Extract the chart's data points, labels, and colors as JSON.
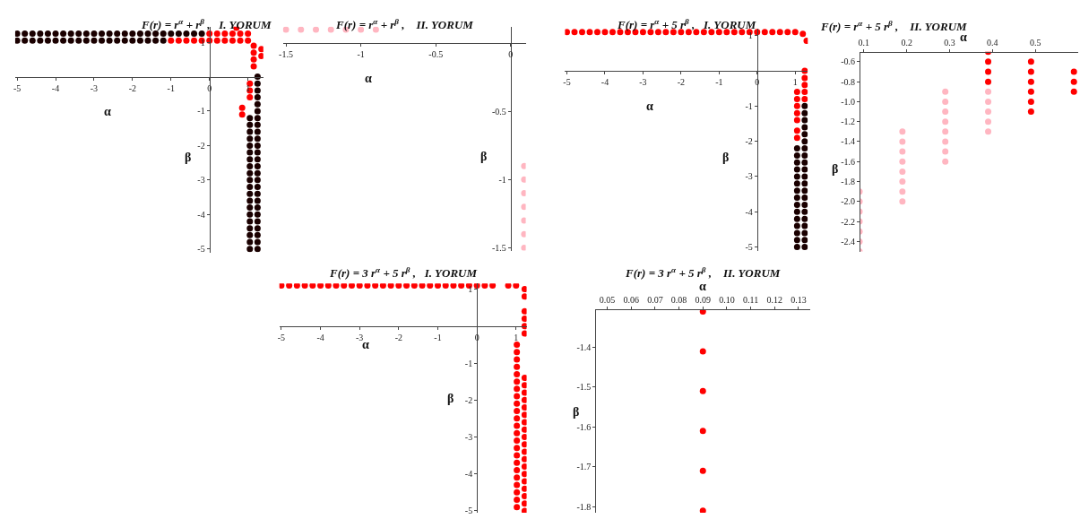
{
  "chart_data": [
    {
      "type": "scatter",
      "title": "F(r) = r$^{α}$ + r$^{β}$ ,   I. YORUM",
      "xlabel": "α",
      "ylabel": "β",
      "xlim": [
        -5.05,
        1.4
      ],
      "ylim": [
        -5.1,
        1.45
      ],
      "xticks": [
        -5,
        -4,
        -3,
        -2,
        -1,
        0,
        1
      ],
      "yticks": [
        -5,
        -4,
        -3,
        -2,
        -1,
        1
      ],
      "marker": "circle",
      "series": [
        {
          "color": "#1a0000",
          "x": [
            -5,
            -4.8,
            -4.6,
            -4.4,
            -4.2,
            -4,
            -3.8,
            -3.6,
            -3.4,
            -3.2,
            -3,
            -2.8,
            -2.6,
            -2.4,
            -2.2,
            -2,
            -1.8,
            -1.6,
            -1.4,
            -1.2,
            -1,
            -0.8,
            -0.6,
            -0.4,
            -0.2
          ],
          "values": [
            1.25,
            1.25,
            1.25,
            1.25,
            1.25,
            1.25,
            1.25,
            1.25,
            1.25,
            1.25,
            1.25,
            1.25,
            1.25,
            1.25,
            1.25,
            1.25,
            1.25,
            1.25,
            1.25,
            1.25,
            1.25,
            1.25,
            1.25,
            1.25,
            1.25
          ]
        },
        {
          "color": "#1a0000",
          "x": [
            -5,
            -4.8,
            -4.6,
            -4.4,
            -4.2,
            -4,
            -3.8,
            -3.6,
            -3.4,
            -3.2,
            -3,
            -2.8,
            -2.6,
            -2.4,
            -2.2,
            -2,
            -1.8,
            -1.6,
            -1.4,
            -1.2
          ],
          "values": [
            1.05,
            1.05,
            1.05,
            1.05,
            1.05,
            1.05,
            1.05,
            1.05,
            1.05,
            1.05,
            1.05,
            1.05,
            1.05,
            1.05,
            1.05,
            1.05,
            1.05,
            1.05,
            1.05,
            1.05
          ]
        },
        {
          "color": "#1a0000",
          "x": [
            1.05,
            1.05,
            1.05,
            1.05,
            1.05,
            1.05,
            1.05,
            1.05,
            1.05,
            1.05,
            1.05,
            1.05,
            1.05,
            1.05,
            1.05,
            1.05,
            1.05,
            1.05,
            1.05,
            1.05
          ],
          "values": [
            -5,
            -4.8,
            -4.6,
            -4.4,
            -4.2,
            -4,
            -3.8,
            -3.6,
            -3.4,
            -3.2,
            -3,
            -2.8,
            -2.6,
            -2.4,
            -2.2,
            -2,
            -1.8,
            -1.6,
            -1.4,
            -1.2
          ]
        },
        {
          "color": "#1a0000",
          "x": [
            1.25,
            1.25,
            1.25,
            1.25,
            1.25,
            1.25,
            1.25,
            1.25,
            1.25,
            1.25,
            1.25,
            1.25,
            1.25,
            1.25,
            1.25,
            1.25,
            1.25,
            1.25,
            1.25,
            1.25,
            1.25,
            1.25,
            1.25,
            1.25,
            1.25,
            1.25
          ],
          "values": [
            -5,
            -4.8,
            -4.6,
            -4.4,
            -4.2,
            -4,
            -3.8,
            -3.6,
            -3.4,
            -3.2,
            -3,
            -2.8,
            -2.6,
            -2.4,
            -2.2,
            -2,
            -1.8,
            -1.6,
            -1.4,
            -1.2,
            -1,
            -0.8,
            -0.6,
            -0.4,
            -0.2,
            0
          ]
        },
        {
          "color": "#ff0000",
          "x": [
            0,
            0.2,
            0.4,
            0.6,
            0.8,
            1.0,
            -1,
            -0.8,
            -0.6,
            -0.4,
            -0.2,
            0,
            0.2,
            0.4,
            0.6,
            0.8,
            1.0,
            0.7
          ],
          "values": [
            1.25,
            1.25,
            1.25,
            1.25,
            1.25,
            1.25,
            1.05,
            1.05,
            1.05,
            1.05,
            1.05,
            1.05,
            1.05,
            1.05,
            1.05,
            1.05,
            1.05,
            1.42
          ]
        },
        {
          "color": "#ff0000",
          "x": [
            1.15,
            1.15,
            1.15,
            1.15,
            1.35,
            1.35,
            1.05,
            1.05,
            1.05,
            0.85,
            0.85
          ],
          "values": [
            0.9,
            0.7,
            0.5,
            0.3,
            0.8,
            0.6,
            -0.6,
            -0.4,
            -0.2,
            -0.9,
            -1.1
          ]
        }
      ]
    },
    {
      "type": "scatter",
      "title": "F(r) = r$^{α}$ + r$^{β}$ ,    II. YORUM",
      "xlabel": "α",
      "ylabel": "β",
      "xlim": [
        -1.52,
        0.1
      ],
      "ylim": [
        -1.52,
        0.12
      ],
      "xticks": [
        -1.5,
        -1,
        -0.5,
        0
      ],
      "yticks": [
        -1.5,
        -1,
        -0.5
      ],
      "marker": "circle",
      "series": [
        {
          "color": "#ffb6c1",
          "x": [
            -1.5,
            -1.4,
            -1.3,
            -1.2,
            -1.1,
            -1.0,
            -0.9,
            0.09,
            0.09,
            0.09,
            0.09,
            0.09,
            0.09,
            0.09
          ],
          "values": [
            0.1,
            0.1,
            0.1,
            0.1,
            0.1,
            0.1,
            0.1,
            -0.9,
            -1.0,
            -1.1,
            -1.2,
            -1.3,
            -1.4,
            -1.5
          ]
        }
      ]
    },
    {
      "type": "scatter",
      "title": "F(r) = r$^{α}$ + 5 r$^{β}$ ,   I. YORUM",
      "xlabel": "α",
      "ylabel": "β",
      "xlim": [
        -5.05,
        1.33
      ],
      "ylim": [
        -5.1,
        1.2
      ],
      "xticks": [
        -5,
        -4,
        -3,
        -2,
        -1,
        0,
        1
      ],
      "yticks": [
        -5,
        -4,
        -3,
        -2,
        -1,
        1
      ],
      "marker": "circle",
      "series": [
        {
          "color": "#ff0000",
          "x": [
            -5,
            -4.8,
            -4.6,
            -4.4,
            -4.2,
            -4,
            -3.8,
            -3.6,
            -3.4,
            -3.2,
            -3,
            -2.8,
            -2.6,
            -2.4,
            -2.2,
            -2,
            -1.8,
            -1.6,
            -1.4,
            -1.2,
            -1,
            -0.8,
            -0.6,
            -0.4,
            -0.2,
            0,
            0.2,
            0.4,
            0.6,
            0.8,
            1.0,
            1.2,
            1.3
          ],
          "values": [
            1.1,
            1.1,
            1.1,
            1.1,
            1.1,
            1.1,
            1.1,
            1.1,
            1.1,
            1.1,
            1.1,
            1.1,
            1.1,
            1.1,
            1.1,
            1.1,
            1.1,
            1.1,
            1.1,
            1.1,
            1.1,
            1.1,
            1.1,
            1.1,
            1.1,
            1.1,
            1.1,
            1.1,
            1.1,
            1.1,
            1.1,
            1.05,
            0.85
          ]
        },
        {
          "color": "#ff0000",
          "x": [
            1.25,
            1.25,
            1.25,
            1.25,
            1.25,
            1.05,
            1.05,
            1.05,
            1.05,
            1.05,
            1.05,
            1.05
          ],
          "values": [
            0,
            -0.2,
            -0.4,
            -0.6,
            -0.8,
            -0.6,
            -0.8,
            -1.0,
            -1.2,
            -1.4,
            -1.7,
            -1.9
          ]
        },
        {
          "color": "#1a0000",
          "x": [
            1.05,
            1.05,
            1.05,
            1.05,
            1.05,
            1.05,
            1.05,
            1.05,
            1.05,
            1.05,
            1.05,
            1.05,
            1.05,
            1.05,
            1.05
          ],
          "values": [
            -5,
            -4.8,
            -4.6,
            -4.4,
            -4.2,
            -4,
            -3.8,
            -3.6,
            -3.4,
            -3.2,
            -3,
            -2.8,
            -2.6,
            -2.4,
            -2.2
          ]
        },
        {
          "color": "#1a0000",
          "x": [
            1.25,
            1.25,
            1.25,
            1.25,
            1.25,
            1.25,
            1.25,
            1.25,
            1.25,
            1.25,
            1.25,
            1.25,
            1.25,
            1.25,
            1.25,
            1.25,
            1.25,
            1.25,
            1.25,
            1.25,
            1.25
          ],
          "values": [
            -5,
            -4.8,
            -4.6,
            -4.4,
            -4.2,
            -4,
            -3.8,
            -3.6,
            -3.4,
            -3.2,
            -3,
            -2.8,
            -2.6,
            -2.4,
            -2.2,
            -2,
            -1.8,
            -1.6,
            -1.4,
            -1.2,
            -1.0
          ]
        }
      ]
    },
    {
      "type": "scatter",
      "title": "F(r) = r$^{α}$ + 5 r$^{β}$ ,    II. YORUM",
      "xlabel": "α",
      "ylabel": "β",
      "xlim": [
        0.09,
        0.6
      ],
      "ylim": [
        -2.5,
        -0.5
      ],
      "xticks": [
        0.1,
        0.2,
        0.3,
        0.4,
        0.5
      ],
      "yticks": [
        -0.6,
        -0.8,
        {
          "value": -1.0,
          "label": "-1.0"
        },
        -1.2,
        -1.4,
        -1.6,
        -1.8,
        {
          "value": -2.0,
          "label": "-2.0"
        },
        -2.2,
        -2.4
      ],
      "marker": "circle",
      "series": [
        {
          "color": "#ffb6c1",
          "x": [
            0.09,
            0.09,
            0.09,
            0.09,
            0.09,
            0.09,
            0.09,
            0.19,
            0.19,
            0.19,
            0.19,
            0.19,
            0.19,
            0.19,
            0.19,
            0.29,
            0.29,
            0.29,
            0.29,
            0.29,
            0.29,
            0.29,
            0.29,
            0.39,
            0.39,
            0.39,
            0.39,
            0.39
          ],
          "values": [
            -1.9,
            -2.0,
            -2.1,
            -2.2,
            -2.3,
            -2.4,
            -2.5,
            -1.3,
            -1.4,
            -1.5,
            -1.6,
            -1.7,
            -1.8,
            -1.9,
            -2.0,
            -0.9,
            -1.0,
            -1.1,
            -1.2,
            -1.3,
            -1.4,
            -1.5,
            -1.6,
            -0.9,
            -1.0,
            -1.1,
            -1.2,
            -1.3
          ]
        },
        {
          "color": "#ff0000",
          "x": [
            0.39,
            0.39,
            0.39,
            0.39,
            0.49,
            0.49,
            0.49,
            0.49,
            0.49,
            0.49,
            0.59,
            0.59,
            0.59
          ],
          "values": [
            -0.5,
            -0.6,
            -0.7,
            -0.8,
            -0.6,
            -0.7,
            -0.8,
            -0.9,
            -1.0,
            -1.1,
            -0.7,
            -0.8,
            -0.9
          ]
        }
      ]
    },
    {
      "type": "scatter",
      "title": "F(r) = 3 r$^{α}$ + 5 r$^{β}$ ,   I. YORUM",
      "xlabel": "α",
      "ylabel": "β",
      "xlim": [
        -5.05,
        1.27
      ],
      "ylim": [
        -5.05,
        1.15
      ],
      "xticks": [
        -5,
        -4,
        -3,
        -2,
        -1,
        0,
        1
      ],
      "yticks": [
        -5,
        -4,
        -3,
        -2,
        -1,
        1
      ],
      "marker": "circle",
      "series": [
        {
          "color": "#ff0000",
          "x": [
            -5,
            -4.8,
            -4.6,
            -4.4,
            -4.2,
            -4,
            -3.8,
            -3.6,
            -3.4,
            -3.2,
            -3,
            -2.8,
            -2.6,
            -2.4,
            -2.2,
            -2,
            -1.8,
            -1.6,
            -1.4,
            -1.2,
            -1,
            -0.8,
            -0.6,
            -0.4,
            -0.2,
            0,
            0.2,
            0.4,
            0.8,
            1.0
          ],
          "values": [
            1.1,
            1.1,
            1.1,
            1.1,
            1.1,
            1.1,
            1.1,
            1.1,
            1.1,
            1.1,
            1.1,
            1.1,
            1.1,
            1.1,
            1.1,
            1.1,
            1.1,
            1.1,
            1.1,
            1.1,
            1.1,
            1.1,
            1.1,
            1.1,
            1.1,
            1.1,
            1.1,
            1.1,
            1.1,
            1.1
          ]
        },
        {
          "color": "#ff0000",
          "x": [
            1.22,
            1.22,
            1.22,
            1.22,
            1.22,
            1.22
          ],
          "values": [
            1.0,
            0.8,
            0.4,
            0.2,
            0,
            -0.2
          ]
        },
        {
          "color": "#ff0000",
          "x": [
            1.02,
            1.02,
            1.02,
            1.02,
            1.02,
            1.02,
            1.02,
            1.02,
            1.02,
            1.02,
            1.02,
            1.02,
            1.02,
            1.02,
            1.02,
            1.02,
            1.02,
            1.02,
            1.02,
            1.02,
            1.02,
            1.02,
            1.02
          ],
          "values": [
            -0.5,
            -0.7,
            -0.9,
            -1.1,
            -1.3,
            -1.5,
            -1.7,
            -1.9,
            -2.1,
            -2.3,
            -2.5,
            -2.7,
            -2.9,
            -3.1,
            -3.3,
            -3.5,
            -3.7,
            -3.9,
            -4.1,
            -4.3,
            -4.5,
            -4.7,
            -4.9
          ]
        },
        {
          "color": "#ff0000",
          "x": [
            1.22,
            1.22,
            1.22,
            1.22,
            1.22,
            1.22,
            1.22,
            1.22,
            1.22,
            1.22,
            1.22,
            1.22,
            1.22,
            1.22,
            1.22,
            1.22,
            1.22,
            1.22,
            1.22
          ],
          "values": [
            -1.4,
            -1.6,
            -1.8,
            -2.0,
            -2.2,
            -2.4,
            -2.6,
            -2.8,
            -3.0,
            -3.2,
            -3.4,
            -3.6,
            -3.8,
            -4.0,
            -4.2,
            -4.4,
            -4.6,
            -4.8,
            -5.0
          ]
        }
      ]
    },
    {
      "type": "scatter",
      "title": "F(r) = 3 r$^{α}$ + 5 r$^{β}$ ,    II. YORUM",
      "xlabel": "α",
      "ylabel": "β",
      "xlim": [
        0.045,
        0.135
      ],
      "ylim": [
        -1.815,
        -1.305
      ],
      "xticks": [
        0.05,
        0.06,
        0.07,
        0.08,
        0.09,
        {
          "value": 0.1,
          "label": "0.10"
        },
        0.11,
        0.12,
        0.13
      ],
      "yticks": [
        -1.4,
        -1.5,
        -1.6,
        -1.7,
        -1.8
      ],
      "marker": "circle",
      "series": [
        {
          "color": "#ff0000",
          "x": [
            0.09,
            0.09,
            0.09,
            0.09,
            0.09,
            0.09
          ],
          "values": [
            -1.31,
            -1.41,
            -1.51,
            -1.61,
            -1.71,
            -1.81
          ]
        }
      ]
    }
  ]
}
